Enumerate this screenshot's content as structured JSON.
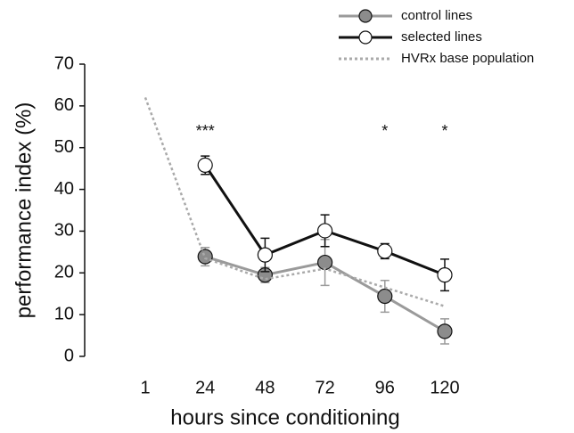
{
  "chart_data": {
    "type": "line",
    "x_label": "hours since conditioning",
    "y_label": "performance index (%)",
    "categories": [
      "1",
      "24",
      "48",
      "72",
      "96",
      "120"
    ],
    "ylim": [
      0,
      70
    ],
    "yticks": [
      0,
      10,
      20,
      30,
      40,
      50,
      60,
      70
    ],
    "grid": false,
    "legend": "top right",
    "series": [
      {
        "name": "control lines",
        "color": "#9a9a9a",
        "marker_fill": "#8c8c8c",
        "style": "solid",
        "values": [
          null,
          23.9,
          19.5,
          22.5,
          14.4,
          6.0
        ],
        "errors": [
          null,
          2.2,
          1.8,
          5.5,
          3.8,
          3.0
        ]
      },
      {
        "name": "selected lines",
        "color": "#111111",
        "marker_fill": "#ffffff",
        "style": "solid",
        "values": [
          null,
          45.8,
          24.3,
          30.1,
          25.2,
          19.5
        ],
        "errors": [
          null,
          2.2,
          4.0,
          3.8,
          1.8,
          3.8
        ]
      },
      {
        "name": "HVRx base population",
        "color": "#aaaaaa",
        "style": "dotted",
        "values": [
          62,
          23.5,
          18.5,
          21,
          16.5,
          12
        ]
      }
    ],
    "annotations": [
      {
        "category": "24",
        "text": "***"
      },
      {
        "category": "96",
        "text": "*"
      },
      {
        "category": "120",
        "text": "*"
      }
    ]
  }
}
